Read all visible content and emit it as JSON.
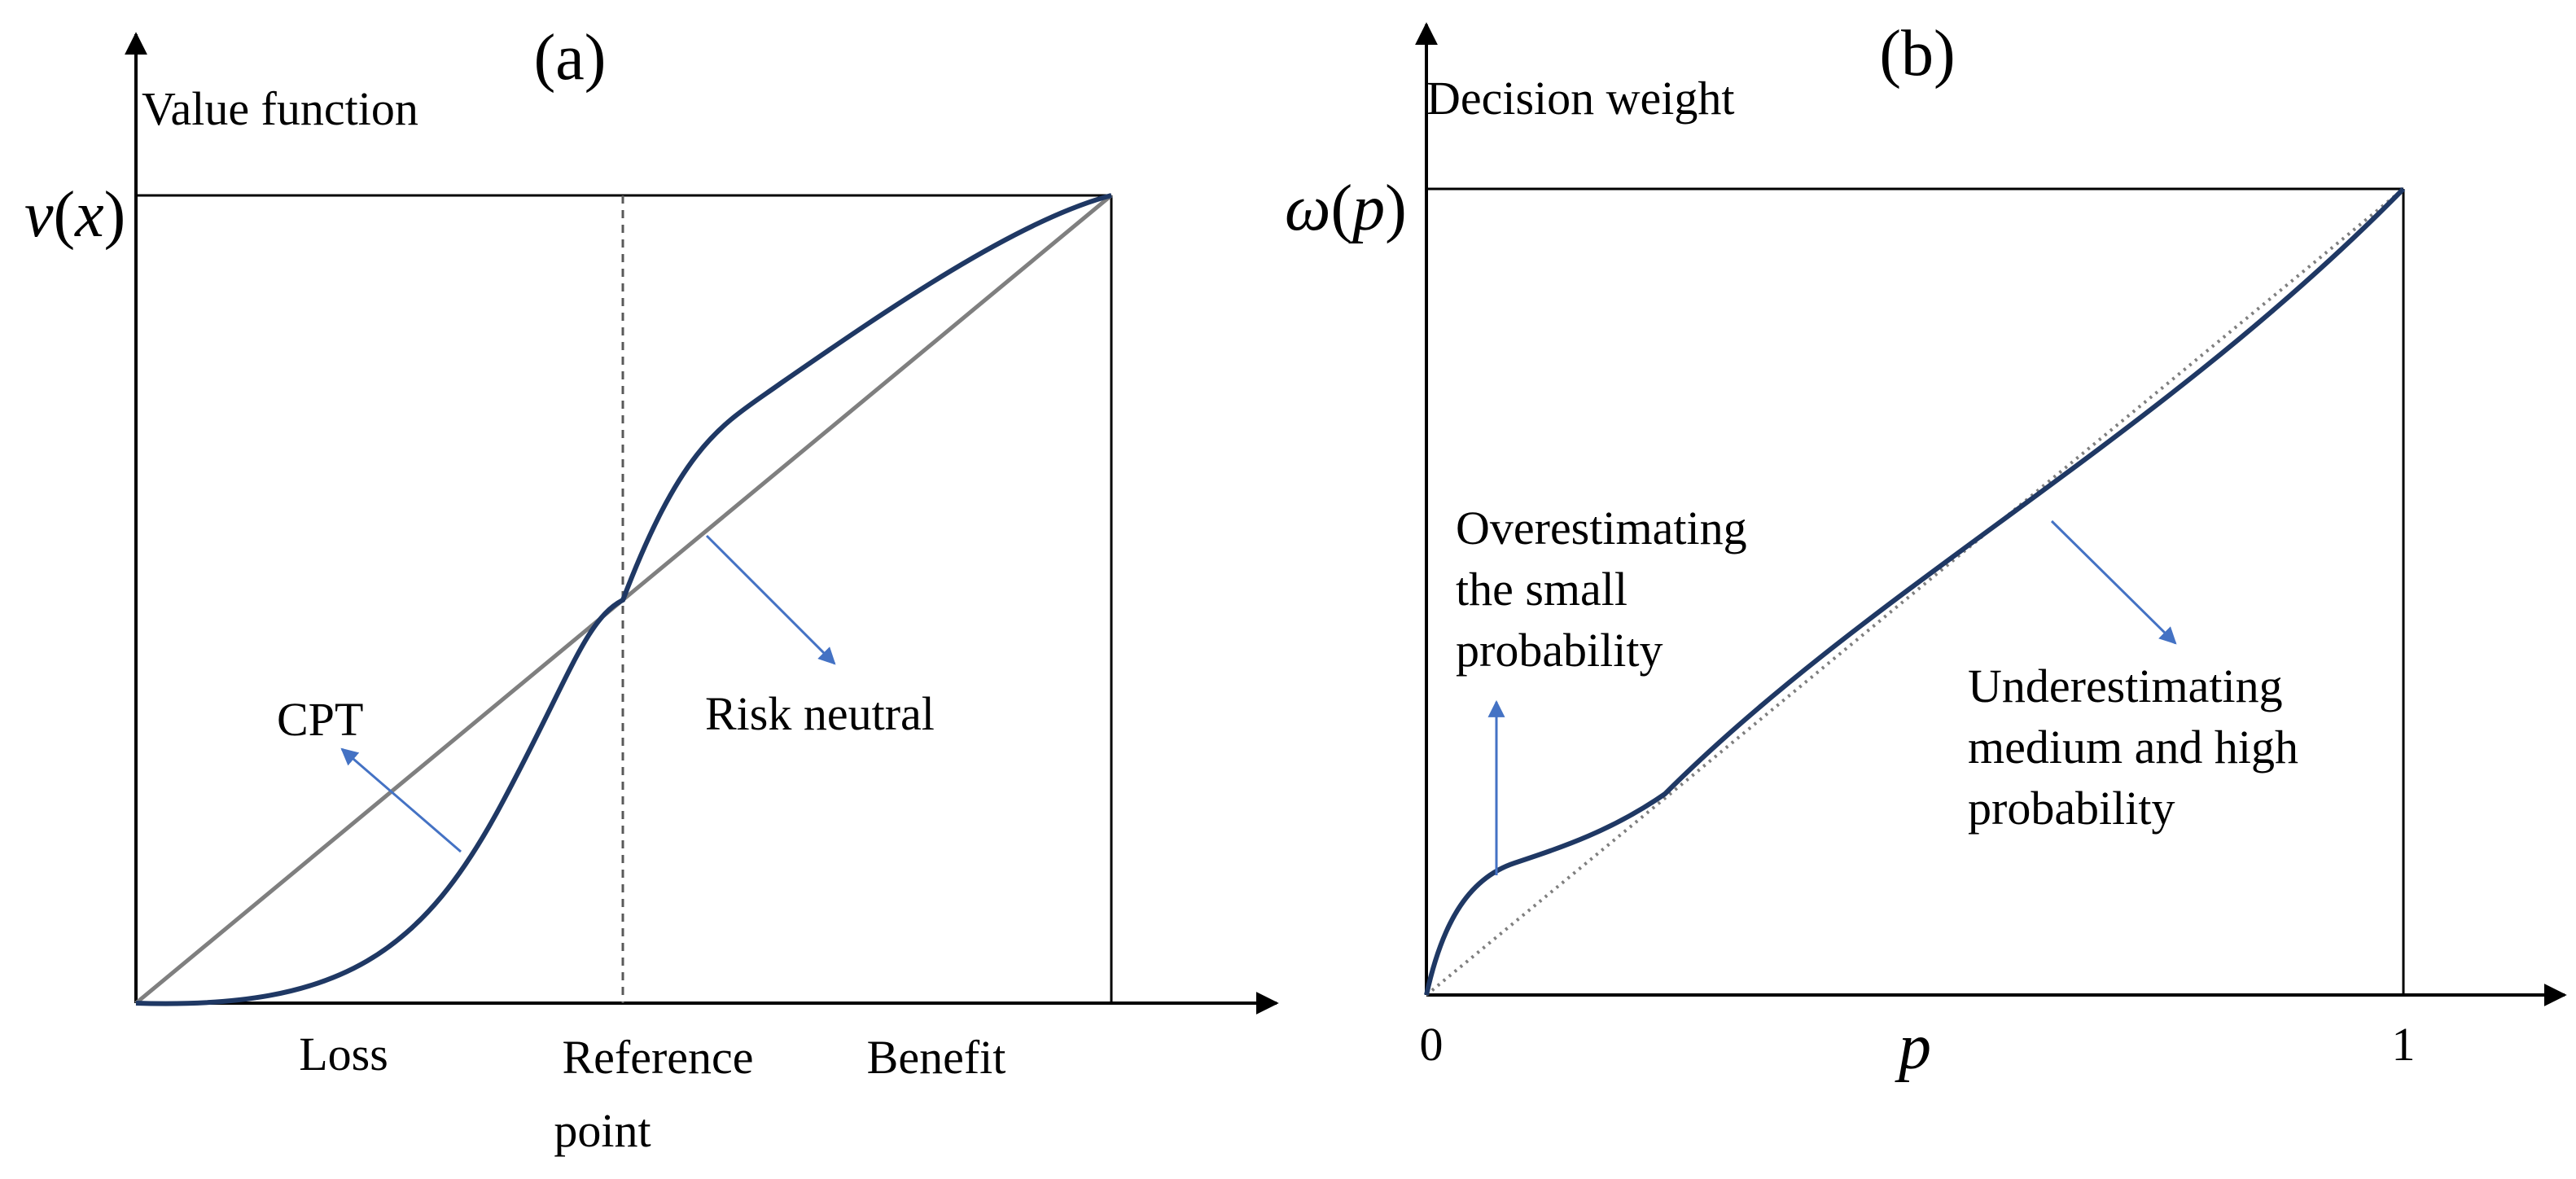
{
  "colors": {
    "axis": "#000000",
    "frame": "#000000",
    "curve": "#1f3864",
    "diagonal": "#7f7f7f",
    "arrow": "#4472c4",
    "reference_line": "#595959"
  },
  "panel_a": {
    "title": "(a)",
    "y_axis_label": "Value function",
    "y_top_label_v": "v",
    "y_top_label_open": "(",
    "y_top_label_x": "x",
    "y_top_label_close": ")",
    "x_labels": {
      "loss": "Loss",
      "reference_line1": "Reference",
      "reference_line2": "point",
      "benefit": "Benefit"
    },
    "curve_label": "CPT",
    "line_label": "Risk neutral"
  },
  "panel_b": {
    "title": "(b)",
    "y_axis_label": "Decision weight",
    "y_top_label_omega": "ω",
    "y_top_label_open": "(",
    "y_top_label_p": "p",
    "y_top_label_close": ")",
    "x_tick_0": "0",
    "x_tick_1": "1",
    "x_axis_var": "p",
    "over_line1": "Overestimating",
    "over_line2": "the small",
    "over_line3": "probability",
    "under_line1": "Underestimating",
    "under_line2": "medium and high",
    "under_line3": "probability"
  }
}
